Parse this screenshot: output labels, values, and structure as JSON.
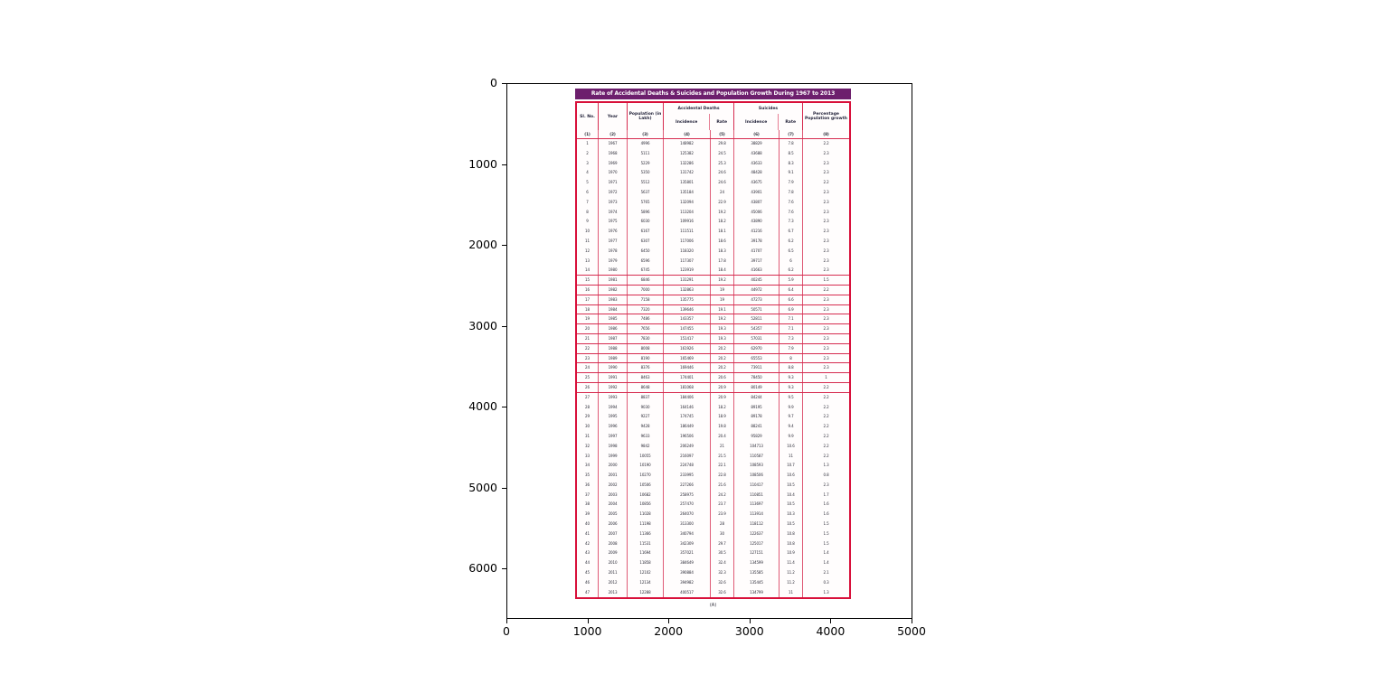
{
  "figure": {
    "title_bar": "Rate of Accidental Deaths & Suicides and Population Growth During 1967 to 2013",
    "caption": "(A)",
    "axes": {
      "x_ticks": [
        "0",
        "1000",
        "2000",
        "3000",
        "4000",
        "5000"
      ],
      "y_ticks": [
        "0",
        "1000",
        "2000",
        "3000",
        "4000",
        "5000",
        "6000"
      ]
    },
    "colors": {
      "title_bg": "#6d1f6d",
      "table_border": "#d8103a",
      "text": "#2a2a36"
    }
  },
  "chart_data": {
    "type": "table",
    "title": "Rate of Accidental Deaths & Suicides and Population Growth During 1967 to 2013",
    "column_groups": [
      {
        "label": "Accidental Deaths",
        "span": 2
      },
      {
        "label": "Suicides",
        "span": 2
      }
    ],
    "columns": [
      "Sl. No.",
      "Year",
      "Population (in Lakh)",
      "Incidence",
      "Rate",
      "Incidence",
      "Rate",
      "Percentage Population growth"
    ],
    "column_numbers": [
      "(1)",
      "(2)",
      "(3)",
      "(4)",
      "(5)",
      "(6)",
      "(7)",
      "(8)"
    ],
    "rows": [
      [
        1,
        1967,
        4996,
        148982,
        29.8,
        38829,
        7.8,
        2.2
      ],
      [
        2,
        1968,
        5111,
        125382,
        24.5,
        43688,
        8.5,
        2.3
      ],
      [
        3,
        1969,
        5229,
        132286,
        25.3,
        43633,
        8.3,
        2.3
      ],
      [
        4,
        1970,
        5350,
        131742,
        24.6,
        48428,
        9.1,
        2.3
      ],
      [
        5,
        1971,
        5512,
        135801,
        24.6,
        43675,
        7.9,
        2.2
      ],
      [
        6,
        1972,
        5637,
        135184,
        24.0,
        43901,
        7.8,
        2.3
      ],
      [
        7,
        1973,
        5765,
        132094,
        22.9,
        43807,
        7.6,
        2.3
      ],
      [
        8,
        1974,
        5896,
        113204,
        19.2,
        45006,
        7.6,
        2.3
      ],
      [
        9,
        1975,
        6030,
        109916,
        18.2,
        43890,
        7.3,
        2.3
      ],
      [
        10,
        1976,
        6167,
        111511,
        18.1,
        41216,
        6.7,
        2.3
      ],
      [
        11,
        1977,
        6307,
        117006,
        18.6,
        39178,
        6.2,
        2.3
      ],
      [
        12,
        1978,
        6450,
        118320,
        18.3,
        41707,
        6.5,
        2.3
      ],
      [
        13,
        1979,
        6596,
        117307,
        17.8,
        39717,
        6.0,
        2.3
      ],
      [
        14,
        1980,
        6745,
        123919,
        18.4,
        41663,
        6.2,
        2.3
      ],
      [
        15,
        1981,
        6846,
        131291,
        19.2,
        40245,
        5.9,
        1.5
      ],
      [
        16,
        1982,
        7000,
        132863,
        19.0,
        44972,
        6.4,
        2.2
      ],
      [
        17,
        1983,
        7158,
        135775,
        19.0,
        47273,
        6.6,
        2.3
      ],
      [
        18,
        1984,
        7320,
        139646,
        19.1,
        50571,
        6.9,
        2.3
      ],
      [
        19,
        1985,
        7486,
        143357,
        19.2,
        52811,
        7.1,
        2.3
      ],
      [
        20,
        1986,
        7656,
        147455,
        19.3,
        54357,
        7.1,
        2.3
      ],
      [
        21,
        1987,
        7830,
        151417,
        19.3,
        57031,
        7.3,
        2.3
      ],
      [
        22,
        1988,
        8008,
        161926,
        20.2,
        62970,
        7.9,
        2.3
      ],
      [
        23,
        1989,
        8190,
        165469,
        20.2,
        65553,
        8.0,
        2.3
      ],
      [
        24,
        1990,
        8376,
        169446,
        20.2,
        73911,
        8.8,
        2.3
      ],
      [
        25,
        1991,
        8463,
        174401,
        20.6,
        78450,
        9.3,
        1.0
      ],
      [
        26,
        1992,
        8648,
        181068,
        20.9,
        80149,
        9.3,
        2.2
      ],
      [
        27,
        1993,
        8837,
        184406,
        20.9,
        84244,
        9.5,
        2.2
      ],
      [
        28,
        1994,
        9030,
        164146,
        18.2,
        89195,
        9.9,
        2.2
      ],
      [
        29,
        1995,
        9227,
        174745,
        18.9,
        89178,
        9.7,
        2.2
      ],
      [
        30,
        1996,
        9428,
        186449,
        19.8,
        88241,
        9.4,
        2.2
      ],
      [
        31,
        1997,
        9633,
        196506,
        20.4,
        95829,
        9.9,
        2.2
      ],
      [
        32,
        1998,
        9842,
        206249,
        21.0,
        104713,
        10.6,
        2.2
      ],
      [
        33,
        1999,
        10055,
        216097,
        21.5,
        110587,
        11.0,
        2.2
      ],
      [
        34,
        2000,
        10190,
        224748,
        22.1,
        108593,
        10.7,
        1.3
      ],
      [
        35,
        2001,
        10270,
        233995,
        22.8,
        108506,
        10.6,
        0.8
      ],
      [
        36,
        2002,
        10506,
        227266,
        21.6,
        110417,
        10.5,
        2.3
      ],
      [
        37,
        2003,
        10682,
        258975,
        24.2,
        110851,
        10.4,
        1.7
      ],
      [
        38,
        2004,
        10856,
        257470,
        23.7,
        113697,
        10.5,
        1.6
      ],
      [
        39,
        2005,
        11028,
        264070,
        23.9,
        113914,
        10.3,
        1.6
      ],
      [
        40,
        2006,
        11198,
        313300,
        28.0,
        118112,
        10.5,
        1.5
      ],
      [
        41,
        2007,
        11366,
        340794,
        30.0,
        122637,
        10.8,
        1.5
      ],
      [
        42,
        2008,
        11531,
        342309,
        29.7,
        125017,
        10.8,
        1.5
      ],
      [
        43,
        2009,
        11694,
        357021,
        30.5,
        127151,
        10.9,
        1.4
      ],
      [
        44,
        2010,
        11858,
        384649,
        32.4,
        134599,
        11.4,
        1.4
      ],
      [
        45,
        2011,
        12102,
        390884,
        32.3,
        135585,
        11.2,
        2.1
      ],
      [
        46,
        2012,
        12134,
        394982,
        32.6,
        135445,
        11.2,
        0.3
      ],
      [
        47,
        2013,
        12288,
        400517,
        32.6,
        134799,
        11.0,
        1.3
      ]
    ]
  }
}
